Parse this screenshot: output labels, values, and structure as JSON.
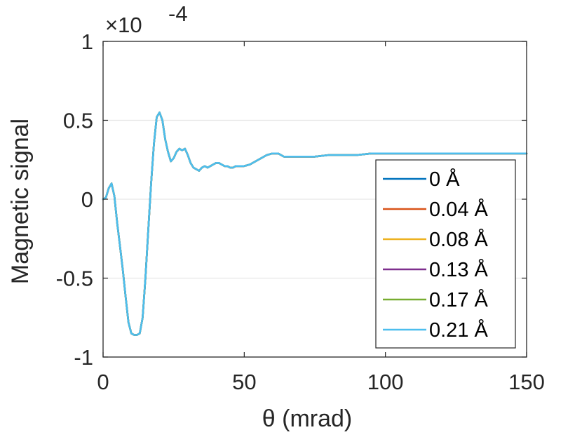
{
  "chart_data": {
    "type": "line",
    "xlabel": "θ (mrad)",
    "ylabel": "Magnetic signal",
    "xlim": [
      0,
      150
    ],
    "ylim": [
      -1,
      1
    ],
    "y_scale_factor_label": "×10",
    "y_scale_exponent": "-4",
    "x_ticks": [
      "0",
      "50",
      "100",
      "150"
    ],
    "y_ticks": [
      "-1",
      "-0.5",
      "0",
      "0.5",
      "1"
    ],
    "grid": "horizontal",
    "legend_position": "bottom-right",
    "x": [
      0,
      1,
      2,
      3,
      4,
      5,
      6,
      7,
      8,
      9,
      10,
      11,
      12,
      13,
      14,
      15,
      16,
      17,
      18,
      19,
      20,
      21,
      22,
      23,
      24,
      25,
      26,
      27,
      28,
      29,
      30,
      31,
      32,
      33,
      34,
      35,
      36,
      37,
      38,
      39,
      40,
      41,
      42,
      43,
      44,
      45,
      46,
      47,
      48,
      49,
      50,
      52,
      54,
      56,
      58,
      60,
      62,
      64,
      66,
      68,
      70,
      75,
      80,
      85,
      90,
      95,
      100,
      110,
      120,
      130,
      140,
      150
    ],
    "series": [
      {
        "name": "0 Å",
        "color": "#0072BD",
        "y": [
          0,
          0.01,
          0.07,
          0.1,
          0.02,
          -0.15,
          -0.3,
          -0.45,
          -0.62,
          -0.78,
          -0.85,
          -0.86,
          -0.86,
          -0.85,
          -0.75,
          -0.5,
          -0.2,
          0.1,
          0.35,
          0.52,
          0.55,
          0.5,
          0.38,
          0.3,
          0.24,
          0.26,
          0.3,
          0.32,
          0.31,
          0.32,
          0.28,
          0.23,
          0.2,
          0.19,
          0.18,
          0.2,
          0.21,
          0.2,
          0.21,
          0.22,
          0.23,
          0.23,
          0.22,
          0.21,
          0.21,
          0.2,
          0.2,
          0.21,
          0.21,
          0.21,
          0.21,
          0.22,
          0.24,
          0.26,
          0.28,
          0.29,
          0.29,
          0.27,
          0.27,
          0.27,
          0.27,
          0.27,
          0.28,
          0.28,
          0.28,
          0.29,
          0.29,
          0.29,
          0.29,
          0.29,
          0.29,
          0.29
        ]
      },
      {
        "name": "0.04 Å",
        "color": "#D95319",
        "y": [
          0,
          0.01,
          0.07,
          0.1,
          0.02,
          -0.15,
          -0.3,
          -0.45,
          -0.62,
          -0.78,
          -0.85,
          -0.86,
          -0.86,
          -0.85,
          -0.75,
          -0.5,
          -0.2,
          0.1,
          0.35,
          0.52,
          0.55,
          0.5,
          0.38,
          0.3,
          0.24,
          0.26,
          0.3,
          0.32,
          0.31,
          0.32,
          0.28,
          0.23,
          0.2,
          0.19,
          0.18,
          0.2,
          0.21,
          0.2,
          0.21,
          0.22,
          0.23,
          0.23,
          0.22,
          0.21,
          0.21,
          0.2,
          0.2,
          0.21,
          0.21,
          0.21,
          0.21,
          0.22,
          0.24,
          0.26,
          0.28,
          0.29,
          0.29,
          0.27,
          0.27,
          0.27,
          0.27,
          0.27,
          0.28,
          0.28,
          0.28,
          0.29,
          0.29,
          0.29,
          0.29,
          0.29,
          0.29,
          0.29
        ]
      },
      {
        "name": "0.08 Å",
        "color": "#EDB120",
        "y": [
          0,
          0.01,
          0.07,
          0.1,
          0.02,
          -0.15,
          -0.3,
          -0.45,
          -0.62,
          -0.78,
          -0.85,
          -0.86,
          -0.86,
          -0.85,
          -0.75,
          -0.5,
          -0.2,
          0.1,
          0.35,
          0.52,
          0.55,
          0.5,
          0.38,
          0.3,
          0.24,
          0.26,
          0.3,
          0.32,
          0.31,
          0.32,
          0.28,
          0.23,
          0.2,
          0.19,
          0.18,
          0.2,
          0.21,
          0.2,
          0.21,
          0.22,
          0.23,
          0.23,
          0.22,
          0.21,
          0.21,
          0.2,
          0.2,
          0.21,
          0.21,
          0.21,
          0.21,
          0.22,
          0.24,
          0.26,
          0.28,
          0.29,
          0.29,
          0.27,
          0.27,
          0.27,
          0.27,
          0.27,
          0.28,
          0.28,
          0.28,
          0.29,
          0.29,
          0.29,
          0.29,
          0.29,
          0.29,
          0.29
        ]
      },
      {
        "name": "0.13 Å",
        "color": "#7E2F8E",
        "y": [
          0,
          0.01,
          0.07,
          0.1,
          0.02,
          -0.15,
          -0.3,
          -0.45,
          -0.62,
          -0.78,
          -0.85,
          -0.86,
          -0.86,
          -0.85,
          -0.75,
          -0.5,
          -0.2,
          0.1,
          0.35,
          0.52,
          0.55,
          0.5,
          0.38,
          0.3,
          0.24,
          0.26,
          0.3,
          0.32,
          0.31,
          0.32,
          0.28,
          0.23,
          0.2,
          0.19,
          0.18,
          0.2,
          0.21,
          0.2,
          0.21,
          0.22,
          0.23,
          0.23,
          0.22,
          0.21,
          0.21,
          0.2,
          0.2,
          0.21,
          0.21,
          0.21,
          0.21,
          0.22,
          0.24,
          0.26,
          0.28,
          0.29,
          0.29,
          0.27,
          0.27,
          0.27,
          0.27,
          0.27,
          0.28,
          0.28,
          0.28,
          0.29,
          0.29,
          0.29,
          0.29,
          0.29,
          0.29,
          0.29
        ]
      },
      {
        "name": "0.17 Å",
        "color": "#77AC30",
        "y": [
          0,
          0.01,
          0.07,
          0.1,
          0.02,
          -0.15,
          -0.3,
          -0.45,
          -0.62,
          -0.78,
          -0.85,
          -0.86,
          -0.86,
          -0.85,
          -0.75,
          -0.5,
          -0.2,
          0.1,
          0.35,
          0.52,
          0.55,
          0.5,
          0.38,
          0.3,
          0.24,
          0.26,
          0.3,
          0.32,
          0.31,
          0.32,
          0.28,
          0.23,
          0.2,
          0.19,
          0.18,
          0.2,
          0.21,
          0.2,
          0.21,
          0.22,
          0.23,
          0.23,
          0.22,
          0.21,
          0.21,
          0.2,
          0.2,
          0.21,
          0.21,
          0.21,
          0.21,
          0.22,
          0.24,
          0.26,
          0.28,
          0.29,
          0.29,
          0.27,
          0.27,
          0.27,
          0.27,
          0.27,
          0.28,
          0.28,
          0.28,
          0.29,
          0.29,
          0.29,
          0.29,
          0.29,
          0.29,
          0.29
        ]
      },
      {
        "name": "0.21 Å",
        "color": "#4DBEEE",
        "y": [
          0,
          0.01,
          0.07,
          0.1,
          0.02,
          -0.15,
          -0.3,
          -0.45,
          -0.62,
          -0.78,
          -0.85,
          -0.86,
          -0.86,
          -0.85,
          -0.75,
          -0.5,
          -0.2,
          0.1,
          0.35,
          0.52,
          0.55,
          0.5,
          0.38,
          0.3,
          0.24,
          0.26,
          0.3,
          0.32,
          0.31,
          0.32,
          0.28,
          0.23,
          0.2,
          0.19,
          0.18,
          0.2,
          0.21,
          0.2,
          0.21,
          0.22,
          0.23,
          0.23,
          0.22,
          0.21,
          0.21,
          0.2,
          0.2,
          0.21,
          0.21,
          0.21,
          0.21,
          0.22,
          0.24,
          0.26,
          0.28,
          0.29,
          0.29,
          0.27,
          0.27,
          0.27,
          0.27,
          0.27,
          0.28,
          0.28,
          0.28,
          0.29,
          0.29,
          0.29,
          0.29,
          0.29,
          0.29,
          0.29
        ]
      }
    ]
  }
}
